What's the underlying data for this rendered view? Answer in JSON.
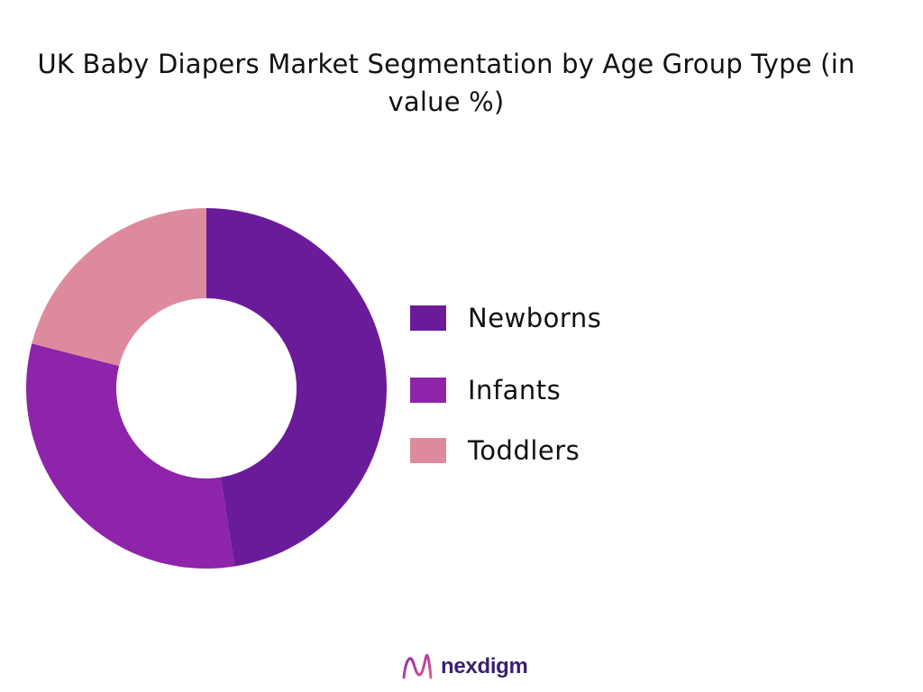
{
  "chart_data": {
    "type": "pie",
    "title_lines": [
      "UK Baby Diapers Market Segmentation by Age Group Type (in",
      "value %)"
    ],
    "categories": [
      "Newborns",
      "Infants",
      "Toddlers"
    ],
    "values": [
      47.5,
      31.5,
      21.0
    ],
    "colors": [
      "#6a1b9a",
      "#8e24aa",
      "#de8a9e"
    ],
    "donut": true,
    "legend_position": "right"
  },
  "brand": {
    "name": "nexdigm"
  }
}
